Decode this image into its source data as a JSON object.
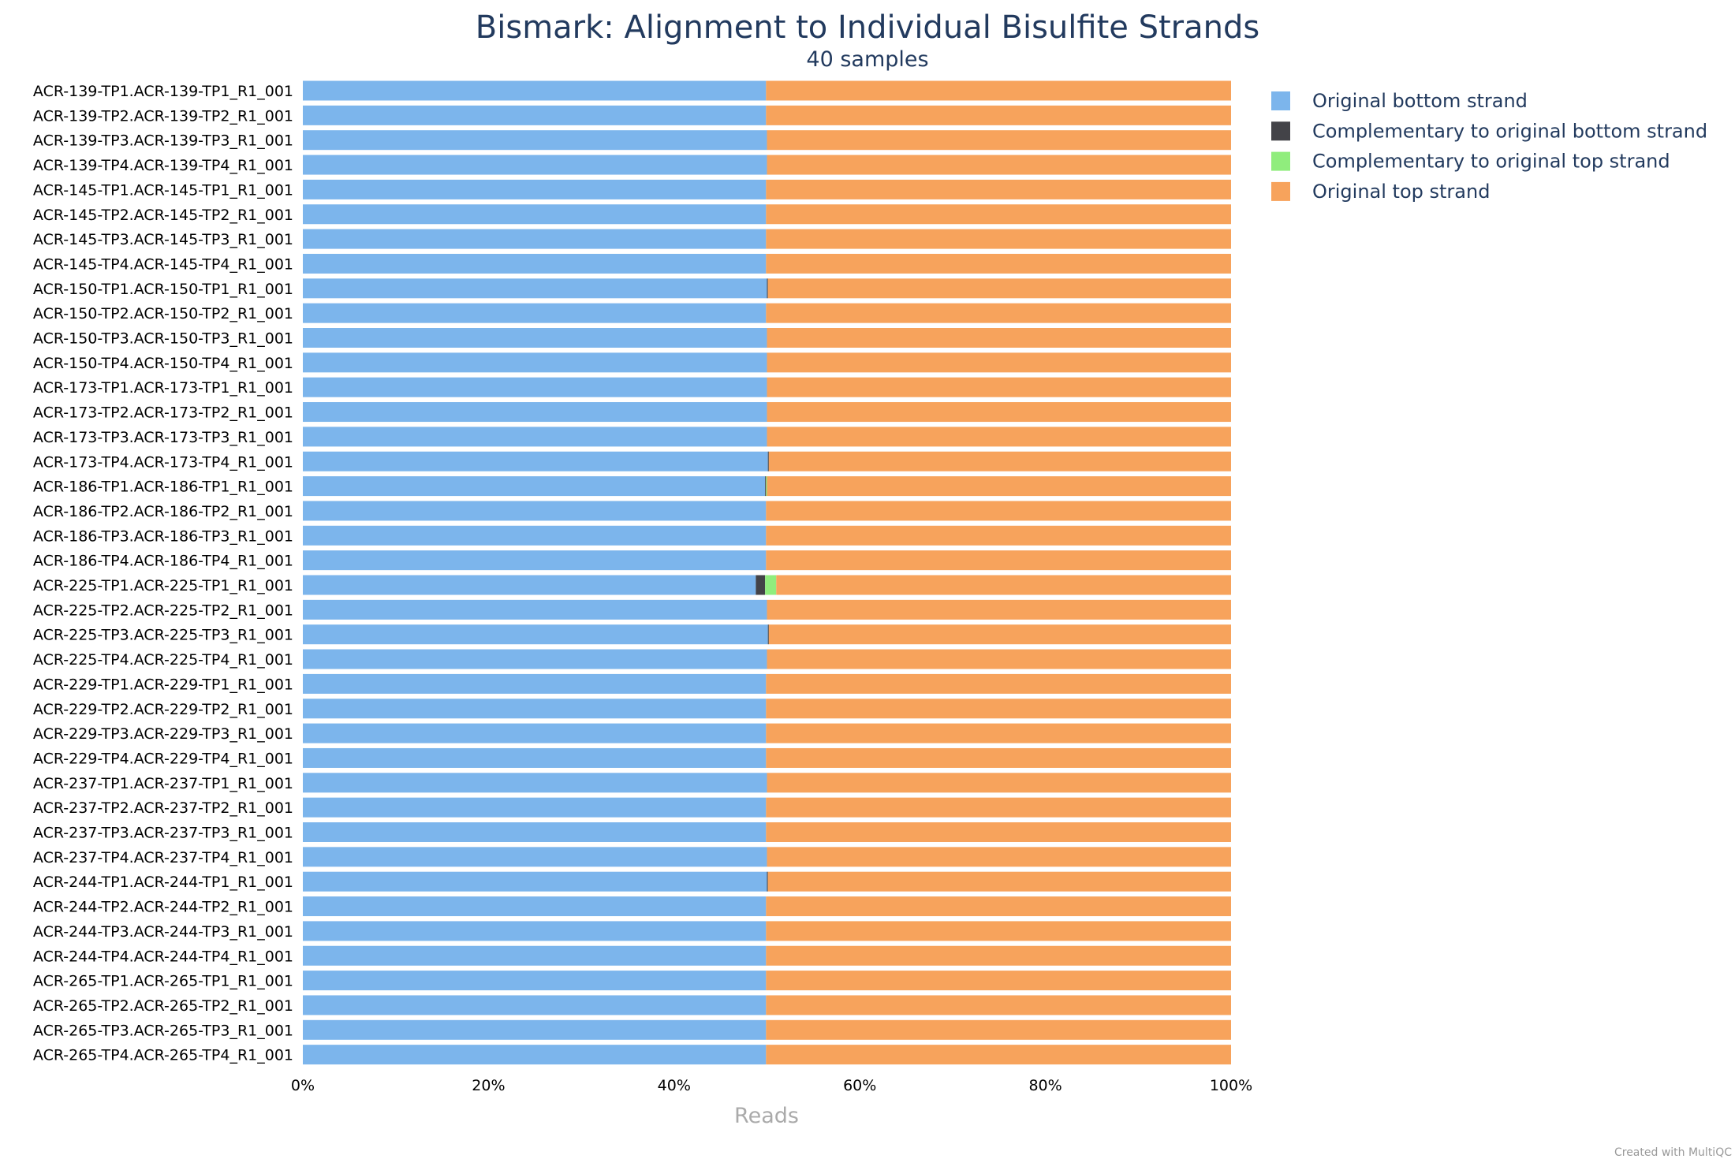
{
  "chart_data": {
    "type": "bar",
    "orientation": "horizontal",
    "stacked": true,
    "title": "Bismark: Alignment to Individual Bisulfite Strands",
    "subtitle": "40 samples",
    "xlabel": "Reads",
    "ylabel": "",
    "xlim": [
      0,
      100
    ],
    "x_ticks": [
      "0%",
      "20%",
      "40%",
      "60%",
      "80%",
      "100%"
    ],
    "grid": false,
    "legend_position": "top-right",
    "categories": [
      "ACR-139-TP1.ACR-139-TP1_R1_001",
      "ACR-139-TP2.ACR-139-TP2_R1_001",
      "ACR-139-TP3.ACR-139-TP3_R1_001",
      "ACR-139-TP4.ACR-139-TP4_R1_001",
      "ACR-145-TP1.ACR-145-TP1_R1_001",
      "ACR-145-TP2.ACR-145-TP2_R1_001",
      "ACR-145-TP3.ACR-145-TP3_R1_001",
      "ACR-145-TP4.ACR-145-TP4_R1_001",
      "ACR-150-TP1.ACR-150-TP1_R1_001",
      "ACR-150-TP2.ACR-150-TP2_R1_001",
      "ACR-150-TP3.ACR-150-TP3_R1_001",
      "ACR-150-TP4.ACR-150-TP4_R1_001",
      "ACR-173-TP1.ACR-173-TP1_R1_001",
      "ACR-173-TP2.ACR-173-TP2_R1_001",
      "ACR-173-TP3.ACR-173-TP3_R1_001",
      "ACR-173-TP4.ACR-173-TP4_R1_001",
      "ACR-186-TP1.ACR-186-TP1_R1_001",
      "ACR-186-TP2.ACR-186-TP2_R1_001",
      "ACR-186-TP3.ACR-186-TP3_R1_001",
      "ACR-186-TP4.ACR-186-TP4_R1_001",
      "ACR-225-TP1.ACR-225-TP1_R1_001",
      "ACR-225-TP2.ACR-225-TP2_R1_001",
      "ACR-225-TP3.ACR-225-TP3_R1_001",
      "ACR-225-TP4.ACR-225-TP4_R1_001",
      "ACR-229-TP1.ACR-229-TP1_R1_001",
      "ACR-229-TP2.ACR-229-TP2_R1_001",
      "ACR-229-TP3.ACR-229-TP3_R1_001",
      "ACR-229-TP4.ACR-229-TP4_R1_001",
      "ACR-237-TP1.ACR-237-TP1_R1_001",
      "ACR-237-TP2.ACR-237-TP2_R1_001",
      "ACR-237-TP3.ACR-237-TP3_R1_001",
      "ACR-237-TP4.ACR-237-TP4_R1_001",
      "ACR-244-TP1.ACR-244-TP1_R1_001",
      "ACR-244-TP2.ACR-244-TP2_R1_001",
      "ACR-244-TP3.ACR-244-TP3_R1_001",
      "ACR-244-TP4.ACR-244-TP4_R1_001",
      "ACR-265-TP1.ACR-265-TP1_R1_001",
      "ACR-265-TP2.ACR-265-TP2_R1_001",
      "ACR-265-TP3.ACR-265-TP3_R1_001",
      "ACR-265-TP4.ACR-265-TP4_R1_001"
    ],
    "series": [
      {
        "name": "Original bottom strand",
        "color": "#7cb5ec",
        "values": [
          49.9,
          49.9,
          50.0,
          50.0,
          49.9,
          49.9,
          49.9,
          49.9,
          50.0,
          49.9,
          50.0,
          50.0,
          50.0,
          50.0,
          50.0,
          50.1,
          49.8,
          49.9,
          49.9,
          49.9,
          48.8,
          50.0,
          50.1,
          50.0,
          49.9,
          49.9,
          49.9,
          49.9,
          50.0,
          49.9,
          49.9,
          50.0,
          50.0,
          49.9,
          49.9,
          49.9,
          49.9,
          49.9,
          49.9,
          49.9
        ]
      },
      {
        "name": "Complementary to original bottom strand",
        "color": "#434348",
        "values": [
          0,
          0,
          0,
          0,
          0,
          0,
          0,
          0,
          0.1,
          0,
          0,
          0,
          0,
          0,
          0,
          0.1,
          0.1,
          0,
          0,
          0,
          1.0,
          0,
          0.1,
          0,
          0,
          0,
          0,
          0,
          0,
          0,
          0,
          0,
          0.1,
          0,
          0,
          0,
          0,
          0,
          0,
          0
        ]
      },
      {
        "name": "Complementary to original top strand",
        "color": "#90ed7d",
        "values": [
          0,
          0,
          0,
          0,
          0,
          0,
          0,
          0,
          0,
          0,
          0,
          0,
          0,
          0,
          0,
          0,
          0.1,
          0,
          0,
          0,
          1.2,
          0,
          0,
          0,
          0,
          0,
          0,
          0,
          0,
          0,
          0,
          0,
          0,
          0,
          0,
          0,
          0,
          0,
          0,
          0
        ]
      },
      {
        "name": "Original top strand",
        "color": "#f7a35c",
        "values": [
          50.1,
          50.1,
          50.0,
          50.0,
          50.1,
          50.1,
          50.1,
          50.1,
          49.9,
          50.1,
          50.0,
          50.0,
          50.0,
          50.0,
          50.0,
          49.8,
          50.0,
          50.1,
          50.1,
          50.1,
          49.0,
          50.0,
          49.8,
          50.0,
          50.1,
          50.1,
          50.1,
          50.1,
          50.0,
          50.1,
          50.1,
          50.0,
          49.9,
          50.1,
          50.1,
          50.1,
          50.1,
          50.1,
          50.1,
          50.1
        ]
      }
    ]
  },
  "colors": {
    "title": "#223a5e",
    "axis_label": "#aaaaaa",
    "tick_text": "#000000",
    "credit_text": "#999999"
  },
  "credit": "Created with MultiQC"
}
